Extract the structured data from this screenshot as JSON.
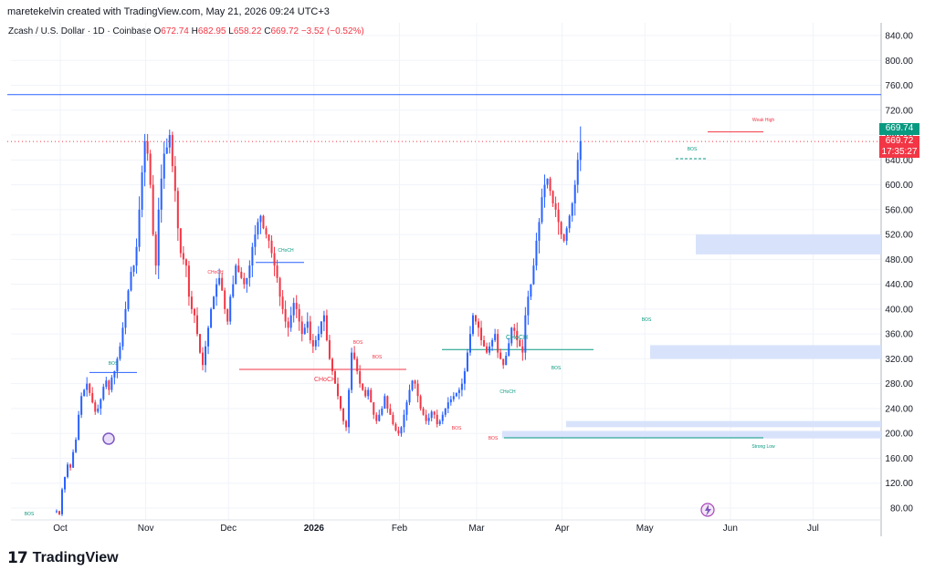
{
  "header": {
    "created_by": "maretekelvin created with TradingView.com, May 21, 2026 09:24 UTC+3"
  },
  "legend": {
    "symbol": "Zcash / U.S. Dollar · 1D · Coinbase",
    "open_label": "O",
    "open": "672.74",
    "high_label": "H",
    "high": "682.95",
    "low_label": "L",
    "low": "658.22",
    "close_label": "C",
    "close": "669.72",
    "change": "−3.52 (−0.52%)"
  },
  "price_tags": {
    "high_line": "669.74",
    "last": "669.72",
    "countdown": "17:35:27"
  },
  "brand": {
    "logo": "17",
    "name": "TradingView"
  },
  "colors": {
    "up": "#2962ff",
    "down": "#f23645",
    "zone": "#d4e0fb",
    "green": "#089981",
    "tag_green": "#089981",
    "tag_red": "#f23645"
  },
  "chart_data": {
    "type": "candlestick",
    "ylim": [
      60,
      860
    ],
    "y_ticks": [
      "840.00",
      "800.00",
      "760.00",
      "720.00",
      "680.00",
      "640.00",
      "600.00",
      "560.00",
      "520.00",
      "480.00",
      "440.00",
      "400.00",
      "360.00",
      "320.00",
      "280.00",
      "240.00",
      "200.00",
      "160.00",
      "120.00",
      "80.00"
    ],
    "x_ticks": [
      {
        "label": "Oct",
        "day": 0
      },
      {
        "label": "Nov",
        "day": 31
      },
      {
        "label": "Dec",
        "day": 61
      },
      {
        "label": "2026",
        "day": 92
      },
      {
        "label": "Feb",
        "day": 123
      },
      {
        "label": "Mar",
        "day": 151
      },
      {
        "label": "Apr",
        "day": 182
      },
      {
        "label": "May",
        "day": 212
      },
      {
        "label": "Jun",
        "day": 243
      },
      {
        "label": "Jul",
        "day": 273
      }
    ],
    "closes": [
      75,
      70,
      110,
      130,
      150,
      145,
      170,
      190,
      230,
      260,
      270,
      280,
      265,
      250,
      235,
      240,
      255,
      275,
      285,
      270,
      290,
      300,
      320,
      340,
      370,
      400,
      430,
      460,
      470,
      500,
      560,
      620,
      670,
      650,
      600,
      520,
      470,
      560,
      610,
      650,
      660,
      680,
      630,
      590,
      530,
      490,
      480,
      470,
      420,
      400,
      390,
      360,
      330,
      310,
      340,
      370,
      400,
      420,
      440,
      450,
      430,
      400,
      380,
      420,
      440,
      470,
      460,
      450,
      440,
      450,
      470,
      500,
      520,
      540,
      550,
      530,
      520,
      510,
      490,
      470,
      450,
      420,
      400,
      380,
      370,
      390,
      410,
      400,
      380,
      360,
      370,
      380,
      350,
      340,
      350,
      360,
      380,
      390,
      350,
      320,
      300,
      280,
      260,
      240,
      220,
      210,
      270,
      330,
      320,
      300,
      280,
      270,
      260,
      270,
      250,
      230,
      220,
      230,
      240,
      260,
      240,
      230,
      215,
      205,
      200,
      210,
      230,
      250,
      270,
      285,
      280,
      260,
      240,
      230,
      220,
      225,
      235,
      230,
      215,
      220,
      230,
      240,
      250,
      255,
      260,
      265,
      270,
      280,
      300,
      330,
      360,
      390,
      380,
      370,
      350,
      340,
      330,
      340,
      350,
      360,
      330,
      320,
      310,
      325,
      345,
      370,
      365,
      350,
      340,
      330,
      390,
      420,
      440,
      470,
      510,
      540,
      580,
      600,
      610,
      590,
      570,
      560,
      540,
      520,
      510,
      530,
      550,
      570,
      600,
      640,
      670
    ],
    "annotations": {
      "labels": [
        "BOS",
        "BOS",
        "CHoCH",
        "CHoCH",
        "CHoCH",
        "BOS",
        "BOS",
        "BOS",
        "CHoCH",
        "BOS",
        "CHoCH",
        "BOS",
        "CHoCH",
        "BOS",
        "BOS",
        "BOS",
        "Weak High",
        "Strong Low"
      ],
      "levels": {
        "high_line": 745,
        "weak_high": 685,
        "strong_low": 193,
        "choch_red": 303,
        "choch_green": 335
      },
      "zones": [
        {
          "from": 488,
          "to": 520
        },
        {
          "from": 320,
          "to": 342
        },
        {
          "from": 210,
          "to": 220
        },
        {
          "from": 192,
          "to": 204
        }
      ]
    }
  }
}
